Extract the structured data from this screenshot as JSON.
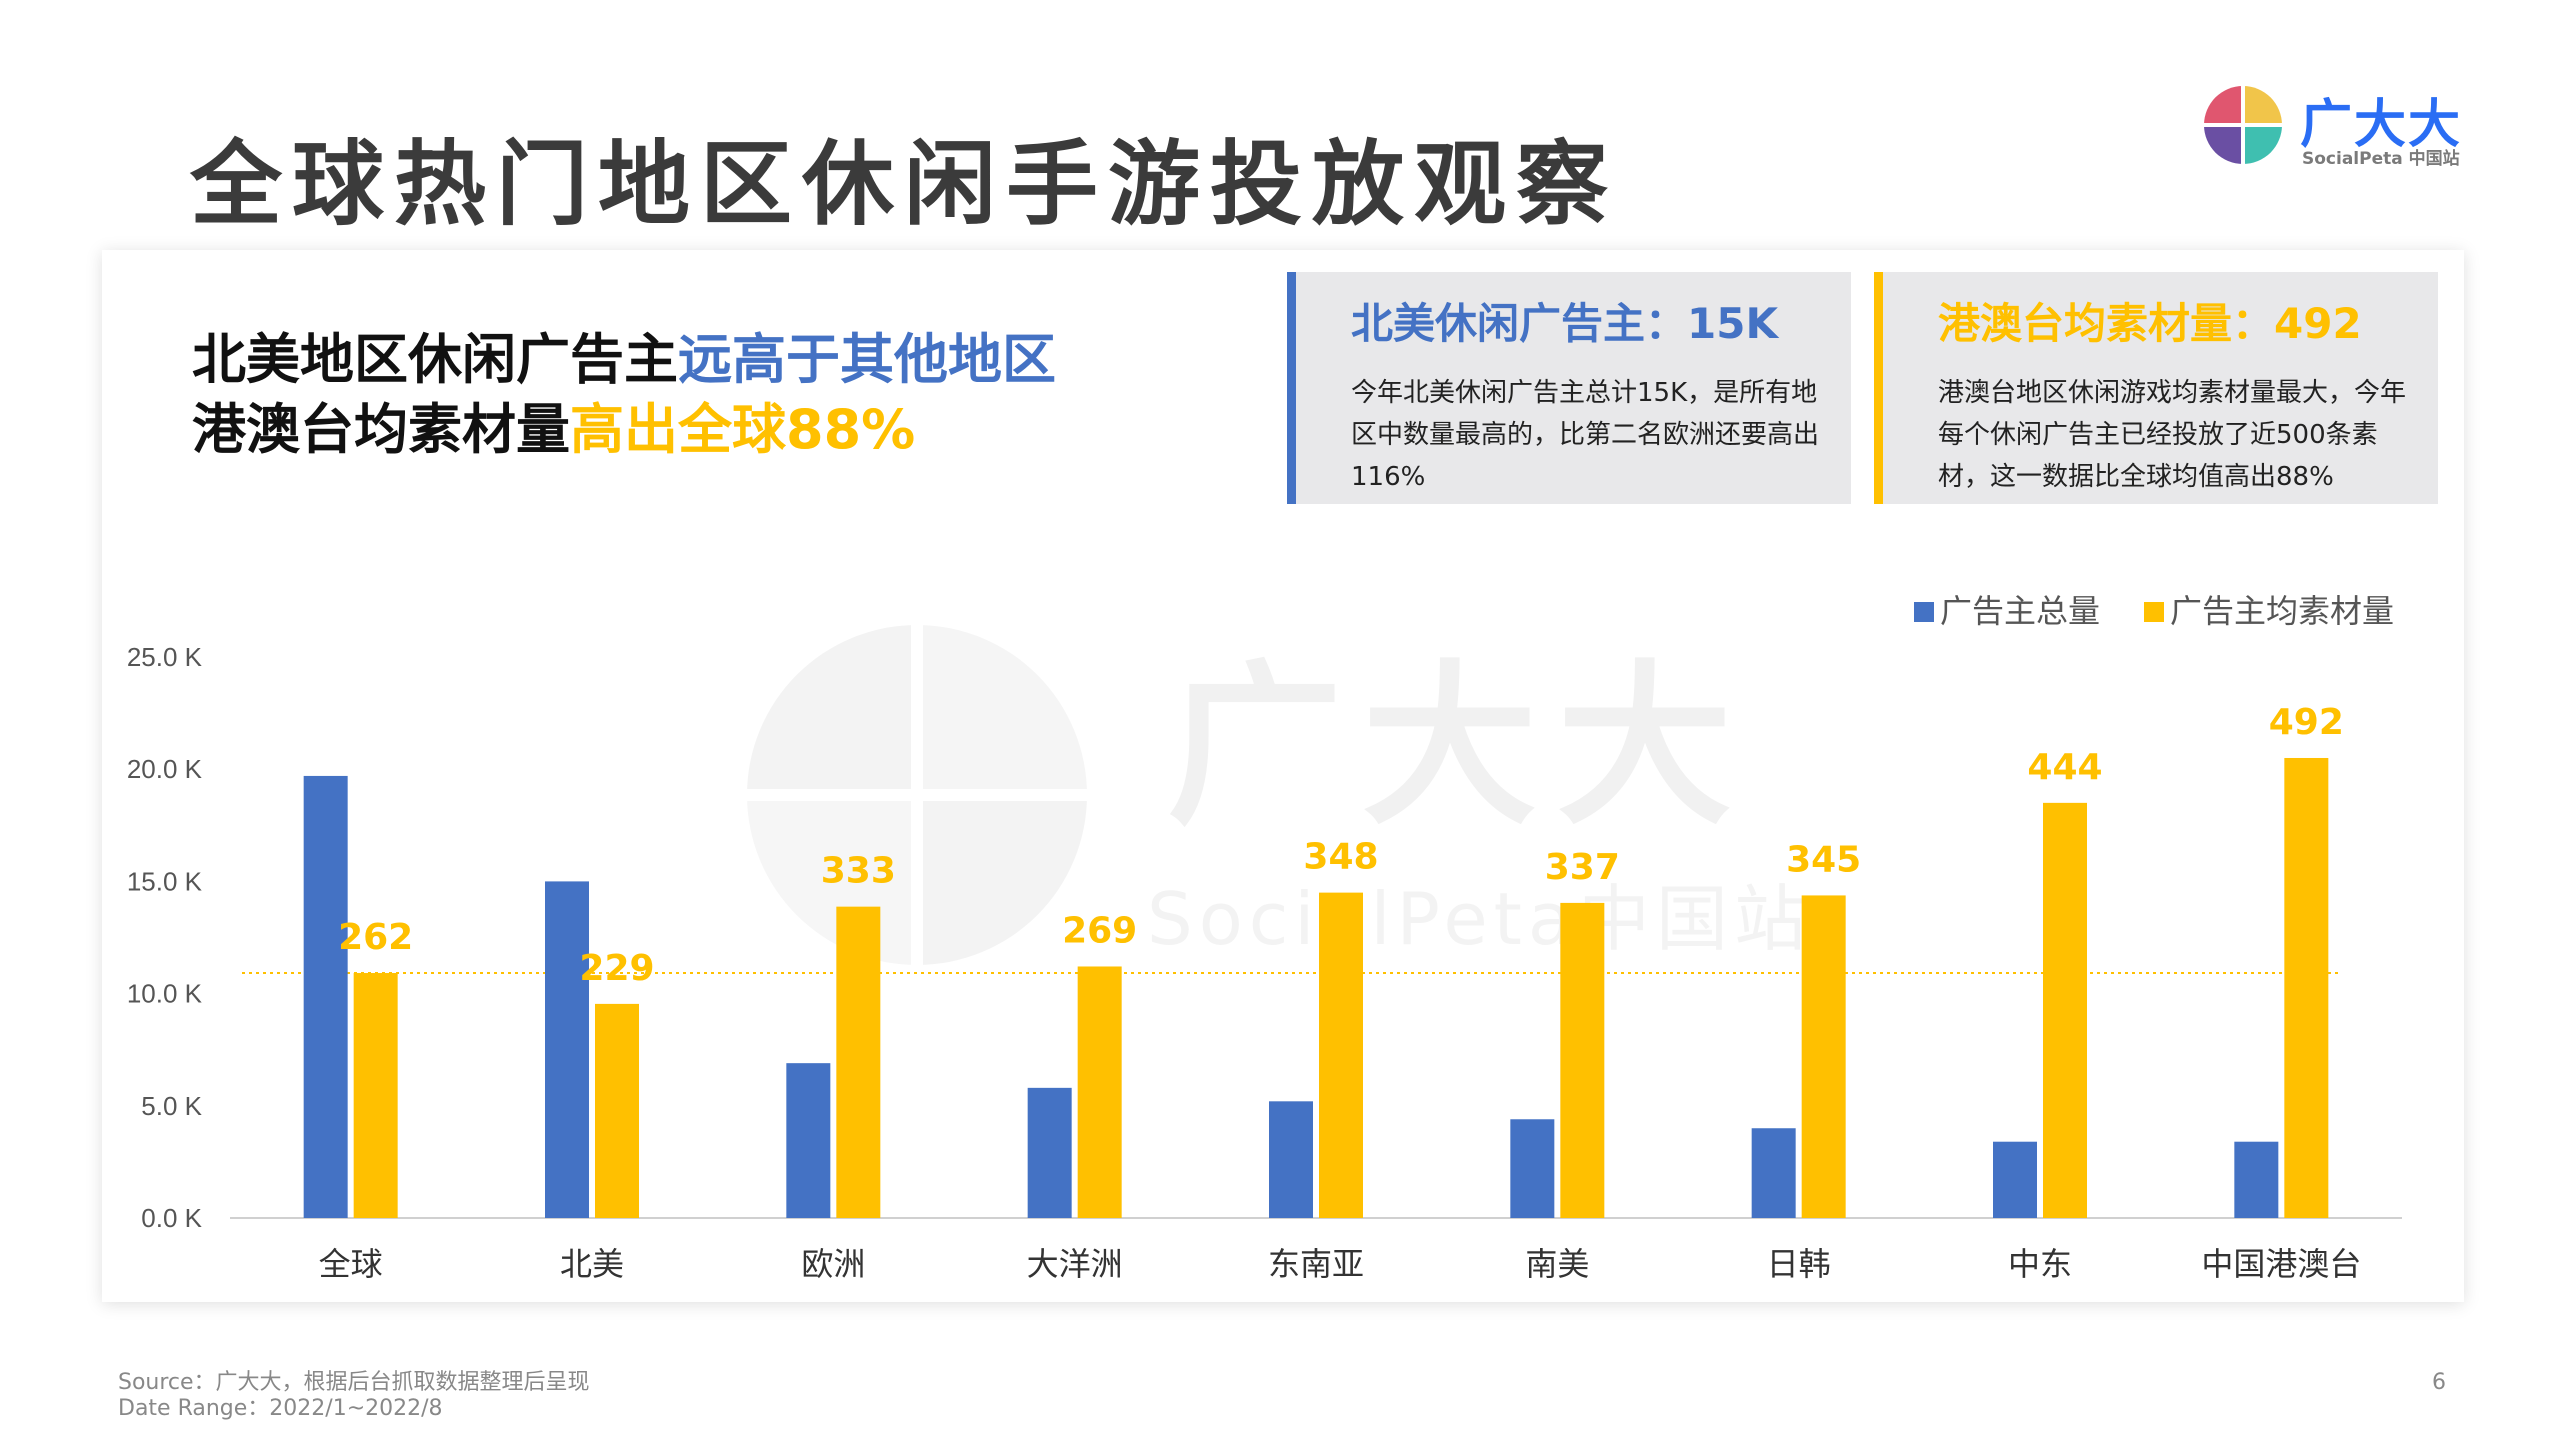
{
  "page": {
    "title": "全球热门地区休闲手游投放观察",
    "page_number": "6"
  },
  "logo": {
    "name": "广大大",
    "subtitle": "SocialPeta 中国站"
  },
  "headline": {
    "line1_dark": "北美地区休闲广告主",
    "line1_blue": "远高于其他地区",
    "line2_dark": "港澳台均素材量",
    "line2_yellow": "高出全球88%"
  },
  "info_boxes": [
    {
      "title": "北美休闲广告主：15K",
      "body": "今年北美休闲广告主总计15K，是所有地区中数量最高的，比第二名欧洲还要高出116%",
      "accent": "#4472c4"
    },
    {
      "title": "港澳台均素材量：492",
      "body": "港澳台地区休闲游戏均素材量最大，今年每个休闲广告主已经投放了近500条素材，这一数据比全球均值高出88%",
      "accent": "#ffc000"
    }
  ],
  "watermark": {
    "text": "广大大",
    "sub": "SocialPeta中国站"
  },
  "chart_data": {
    "type": "bar",
    "categories": [
      "全球",
      "北美",
      "欧洲",
      "大洋洲",
      "东南亚",
      "南美",
      "日韩",
      "中东",
      "中国港澳台"
    ],
    "series": [
      {
        "name": "广告主总量",
        "color": "#4472c4",
        "values": [
          19.7,
          15.0,
          6.9,
          5.8,
          5.2,
          4.4,
          4.0,
          3.4,
          3.4
        ]
      },
      {
        "name": "广告主均素材量",
        "color": "#ffc000",
        "values": [
          262,
          229,
          333,
          269,
          348,
          337,
          345,
          444,
          492
        ],
        "labels": [
          "262",
          "229",
          "333",
          "269",
          "348",
          "337",
          "345",
          "444",
          "492"
        ]
      }
    ],
    "y_ticks": [
      "0.0 K",
      "5.0 K",
      "10.0 K",
      "15.0 K",
      "20.0 K",
      "25.0 K"
    ],
    "ylim": [
      0,
      25
    ],
    "y2lim": [
      0,
      600
    ],
    "reference_line": {
      "value": 262,
      "style": "dotted",
      "color": "#ffc000"
    },
    "legend_position": "top-right",
    "grid": false
  },
  "footer": {
    "source": "Source：广大大，根据后台抓取数据整理后呈现",
    "date_range": "Date Range：2022/1~2022/8"
  }
}
